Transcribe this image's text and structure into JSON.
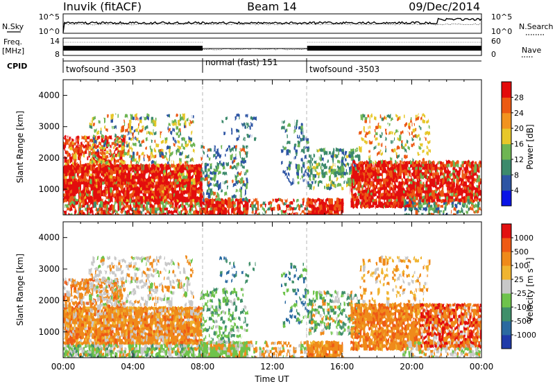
{
  "header": {
    "station": "Inuvik (fitACF)",
    "beam": "Beam 14",
    "date": "09/Dec/2014"
  },
  "panels": {
    "nsky_label": "N.Sky",
    "nsearch_label": "N.Search",
    "nsky_ticks": [
      "10^5",
      "10^0"
    ],
    "nsearch_ticks": [
      "10^5",
      "10^0"
    ],
    "freq_label": "Freq.",
    "freq_unit": "[MHz]",
    "freq_ticks": [
      "14",
      "8"
    ],
    "nave_label": "Nave",
    "nave_ticks": [
      "60",
      "0"
    ],
    "cpid_label": "CPID",
    "cpid_segments": [
      {
        "label": "twofsound -3503",
        "start": 0,
        "end": 8
      },
      {
        "label": "normal (fast) 151",
        "start": 8,
        "end": 14
      },
      {
        "label": "twofsound -3503",
        "start": 14,
        "end": 24
      }
    ]
  },
  "chart_data": [
    {
      "type": "heatmap",
      "title": "",
      "xlabel": "",
      "ylabel": "Slant Range [km]",
      "ylim": [
        180,
        4500
      ],
      "xlim": [
        0,
        24
      ],
      "y_ticks": [
        1000,
        2000,
        3000,
        4000
      ],
      "colorbar_label": "Power [dB]",
      "colorbar_ticks": [
        "4",
        "8",
        "12",
        "16",
        "20",
        "24",
        "28"
      ],
      "colorbar_colors": [
        "#0a14e6",
        "#2d55a4",
        "#3c8a6c",
        "#6eb553",
        "#e7c72a",
        "#f2931f",
        "#ec5a12",
        "#e30b0b"
      ]
    },
    {
      "type": "heatmap",
      "title": "",
      "xlabel": "Time UT",
      "ylabel": "Slant Range [km]",
      "ylim": [
        180,
        4500
      ],
      "xlim": [
        0,
        24
      ],
      "y_ticks": [
        1000,
        2000,
        3000,
        4000
      ],
      "x_ticks": [
        "00:00",
        "04:00",
        "08:00",
        "12:00",
        "16:00",
        "20:00",
        "00:00"
      ],
      "colorbar_label": "Velocity [m s⁻¹]",
      "colorbar_ticks": [
        "1000",
        "500",
        "100",
        "25",
        "-25",
        "-100",
        "-500",
        "-1000"
      ],
      "colorbar_colors": [
        "#1f3aa8",
        "#2b6aa0",
        "#3f8f6a",
        "#6ec34c",
        "#c8c8c8",
        "#f0b430",
        "#ef8a1a",
        "#ee5a14",
        "#e21010"
      ]
    }
  ]
}
